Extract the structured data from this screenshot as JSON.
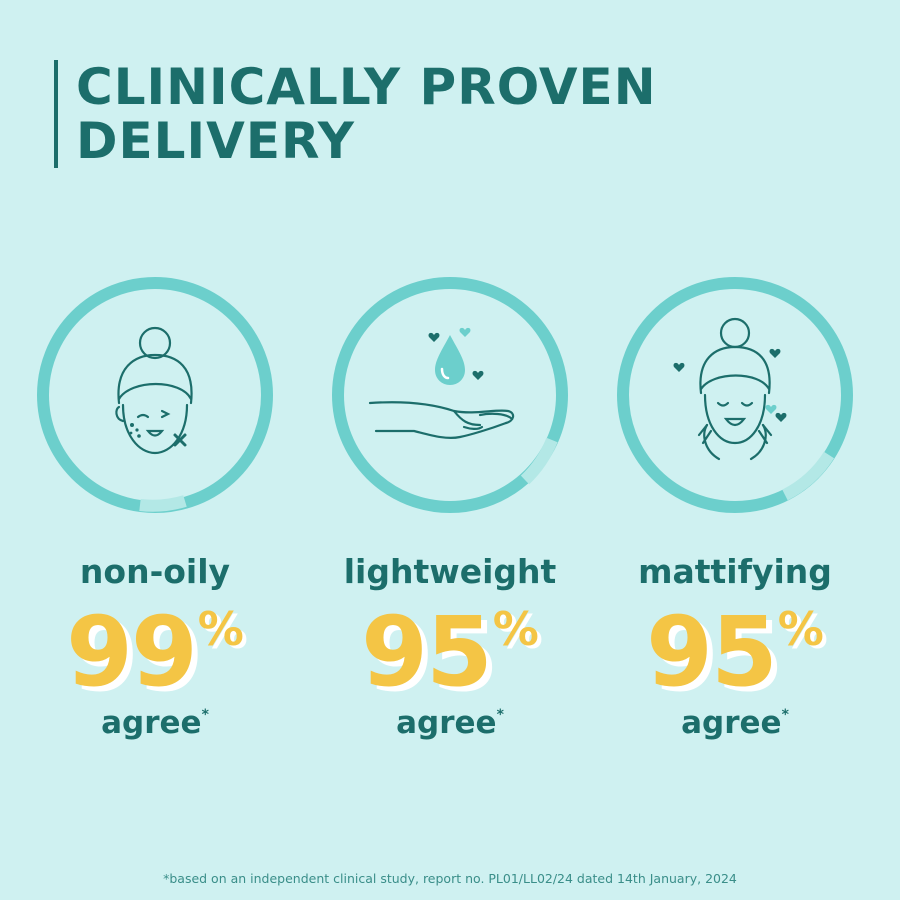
{
  "title": {
    "line1": "CLINICALLY PROVEN",
    "line2": "DELIVERY"
  },
  "stats": [
    {
      "icon": "face-blemish-icon",
      "label": "non-oily",
      "percent": "99",
      "percent_sign": "%",
      "agree": "agree",
      "asterisk": "*"
    },
    {
      "icon": "hand-droplet-icon",
      "label": "lightweight",
      "percent": "95",
      "percent_sign": "%",
      "agree": "agree",
      "asterisk": "*"
    },
    {
      "icon": "face-happy-icon",
      "label": "mattifying",
      "percent": "95",
      "percent_sign": "%",
      "agree": "agree",
      "asterisk": "*"
    }
  ],
  "footnote": "*based on an independent clinical study, report no. PL01/LL02/24 dated 14th January, 2024",
  "colors": {
    "background": "#cff1f1",
    "teal_dark": "#1c6e6b",
    "ring": "#6ccfcc",
    "ring_light": "#b3e8e6",
    "yellow": "#f4c545"
  }
}
